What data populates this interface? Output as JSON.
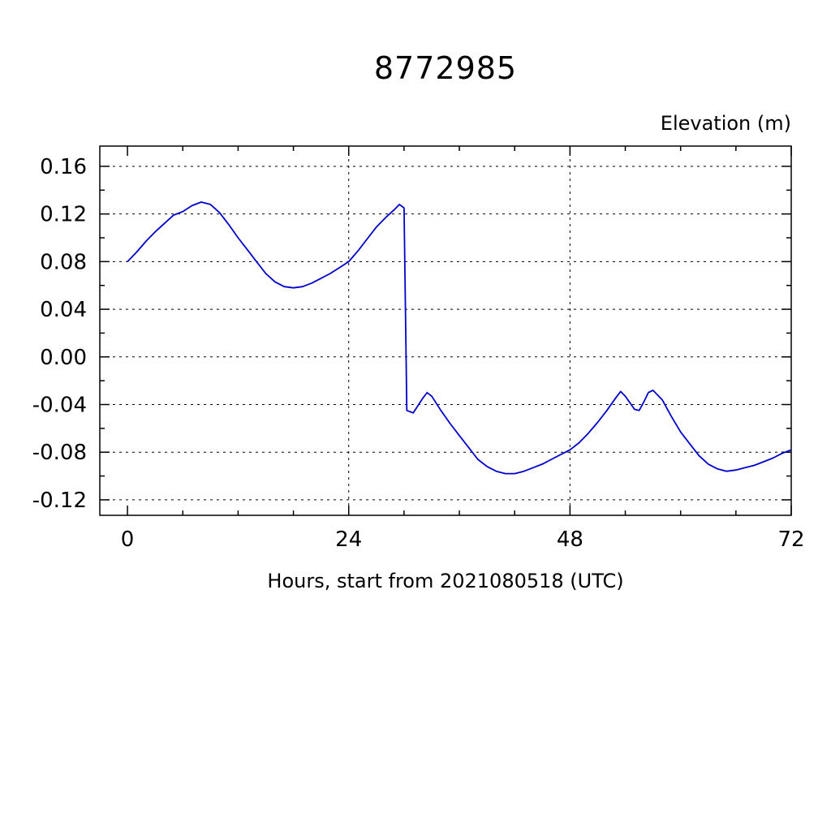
{
  "title": "8772985",
  "y_axis_label": "Elevation (m)",
  "x_axis_label": "Hours, start from 2021080518 (UTC)",
  "chart_data": {
    "type": "line",
    "title": "8772985",
    "xlabel": "Hours, start from 2021080518 (UTC)",
    "ylabel": "Elevation (m)",
    "xlim": [
      -3,
      72
    ],
    "ylim": [
      -0.133,
      0.177
    ],
    "x_ticks": [
      0,
      24,
      48,
      72
    ],
    "x_tick_labels": [
      "0",
      "24",
      "48",
      "72"
    ],
    "x_minor_ticks": [
      6,
      12,
      18,
      30,
      36,
      42,
      54,
      60,
      66
    ],
    "x_grid_ticks": [
      24,
      48
    ],
    "y_ticks": [
      0.16,
      0.12,
      0.08,
      0.04,
      0.0,
      -0.04,
      -0.08,
      -0.12
    ],
    "y_tick_labels": [
      "0.16",
      "0.12",
      "0.08",
      "0.04",
      "0.00",
      "-0.04",
      "-0.08",
      "-0.12"
    ],
    "y_minor_ticks": [
      0.14,
      0.1,
      0.06,
      0.02,
      -0.02,
      -0.06,
      -0.1
    ],
    "grid_style": "dashed",
    "line_color": "#0000cd",
    "axis_color": "#000000",
    "series": [
      {
        "name": "elevation",
        "x": [
          0,
          1,
          2,
          3,
          4,
          5,
          6,
          7,
          8,
          9,
          10,
          11,
          12,
          13,
          14,
          15,
          16,
          17,
          18,
          19,
          20,
          21,
          22,
          23,
          24,
          25,
          26,
          27,
          28,
          29,
          29.5,
          30,
          30.3,
          31,
          32,
          32.5,
          33,
          34,
          35,
          36,
          37,
          38,
          39,
          40,
          41,
          42,
          43,
          44,
          45,
          46,
          47,
          48,
          49,
          50,
          51,
          52,
          53,
          53.5,
          54,
          55,
          55.5,
          56,
          56.5,
          57,
          58,
          59,
          60,
          61,
          62,
          63,
          64,
          65,
          66,
          67,
          68,
          69,
          70,
          71,
          72
        ],
        "y": [
          0.08,
          0.088,
          0.097,
          0.105,
          0.112,
          0.119,
          0.122,
          0.127,
          0.13,
          0.128,
          0.121,
          0.111,
          0.1,
          0.09,
          0.08,
          0.07,
          0.063,
          0.059,
          0.058,
          0.059,
          0.062,
          0.066,
          0.07,
          0.075,
          0.08,
          0.089,
          0.099,
          0.109,
          0.117,
          0.124,
          0.128,
          0.125,
          -0.045,
          -0.047,
          -0.035,
          -0.03,
          -0.033,
          -0.045,
          -0.056,
          -0.066,
          -0.076,
          -0.086,
          -0.092,
          -0.096,
          -0.098,
          -0.098,
          -0.096,
          -0.093,
          -0.09,
          -0.086,
          -0.082,
          -0.078,
          -0.072,
          -0.064,
          -0.055,
          -0.045,
          -0.034,
          -0.029,
          -0.033,
          -0.044,
          -0.045,
          -0.038,
          -0.03,
          -0.028,
          -0.036,
          -0.05,
          -0.063,
          -0.073,
          -0.083,
          -0.09,
          -0.094,
          -0.096,
          -0.095,
          -0.093,
          -0.091,
          -0.088,
          -0.085,
          -0.081,
          -0.078
        ]
      }
    ]
  }
}
